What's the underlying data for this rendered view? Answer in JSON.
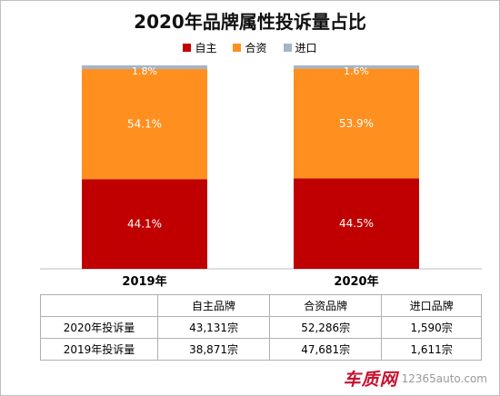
{
  "title": "2020年品牌属性投诉量占比",
  "colors": {
    "own": "#c00000",
    "jv": "#ff8f1f",
    "import": "#a5b5c8"
  },
  "chart_data": {
    "type": "bar",
    "stacked": true,
    "title": "2020年品牌属性投诉量占比",
    "categories": [
      "2019年",
      "2020年"
    ],
    "ylim": [
      0,
      100
    ],
    "legend_position": "top",
    "series": [
      {
        "name": "自主",
        "values": [
          44.1,
          44.5
        ],
        "labels": [
          "44.1%",
          "44.5%"
        ],
        "color": "#c00000"
      },
      {
        "name": "合资",
        "values": [
          54.1,
          53.9
        ],
        "labels": [
          "54.1%",
          "53.9%"
        ],
        "color": "#ff8f1f"
      },
      {
        "name": "进口",
        "values": [
          1.8,
          1.6
        ],
        "labels": [
          "1.8%",
          "1.6%"
        ],
        "color": "#a5b5c8"
      }
    ]
  },
  "table": {
    "headers": [
      "",
      "自主品牌",
      "合资品牌",
      "进口品牌"
    ],
    "rows": [
      [
        "2020年投诉量",
        "43,131宗",
        "52,286宗",
        "1,590宗"
      ],
      [
        "2019年投诉量",
        "38,871宗",
        "47,681宗",
        "1,611宗"
      ]
    ]
  },
  "watermark": {
    "logo": "车质网",
    "url": "12365auto.com"
  }
}
